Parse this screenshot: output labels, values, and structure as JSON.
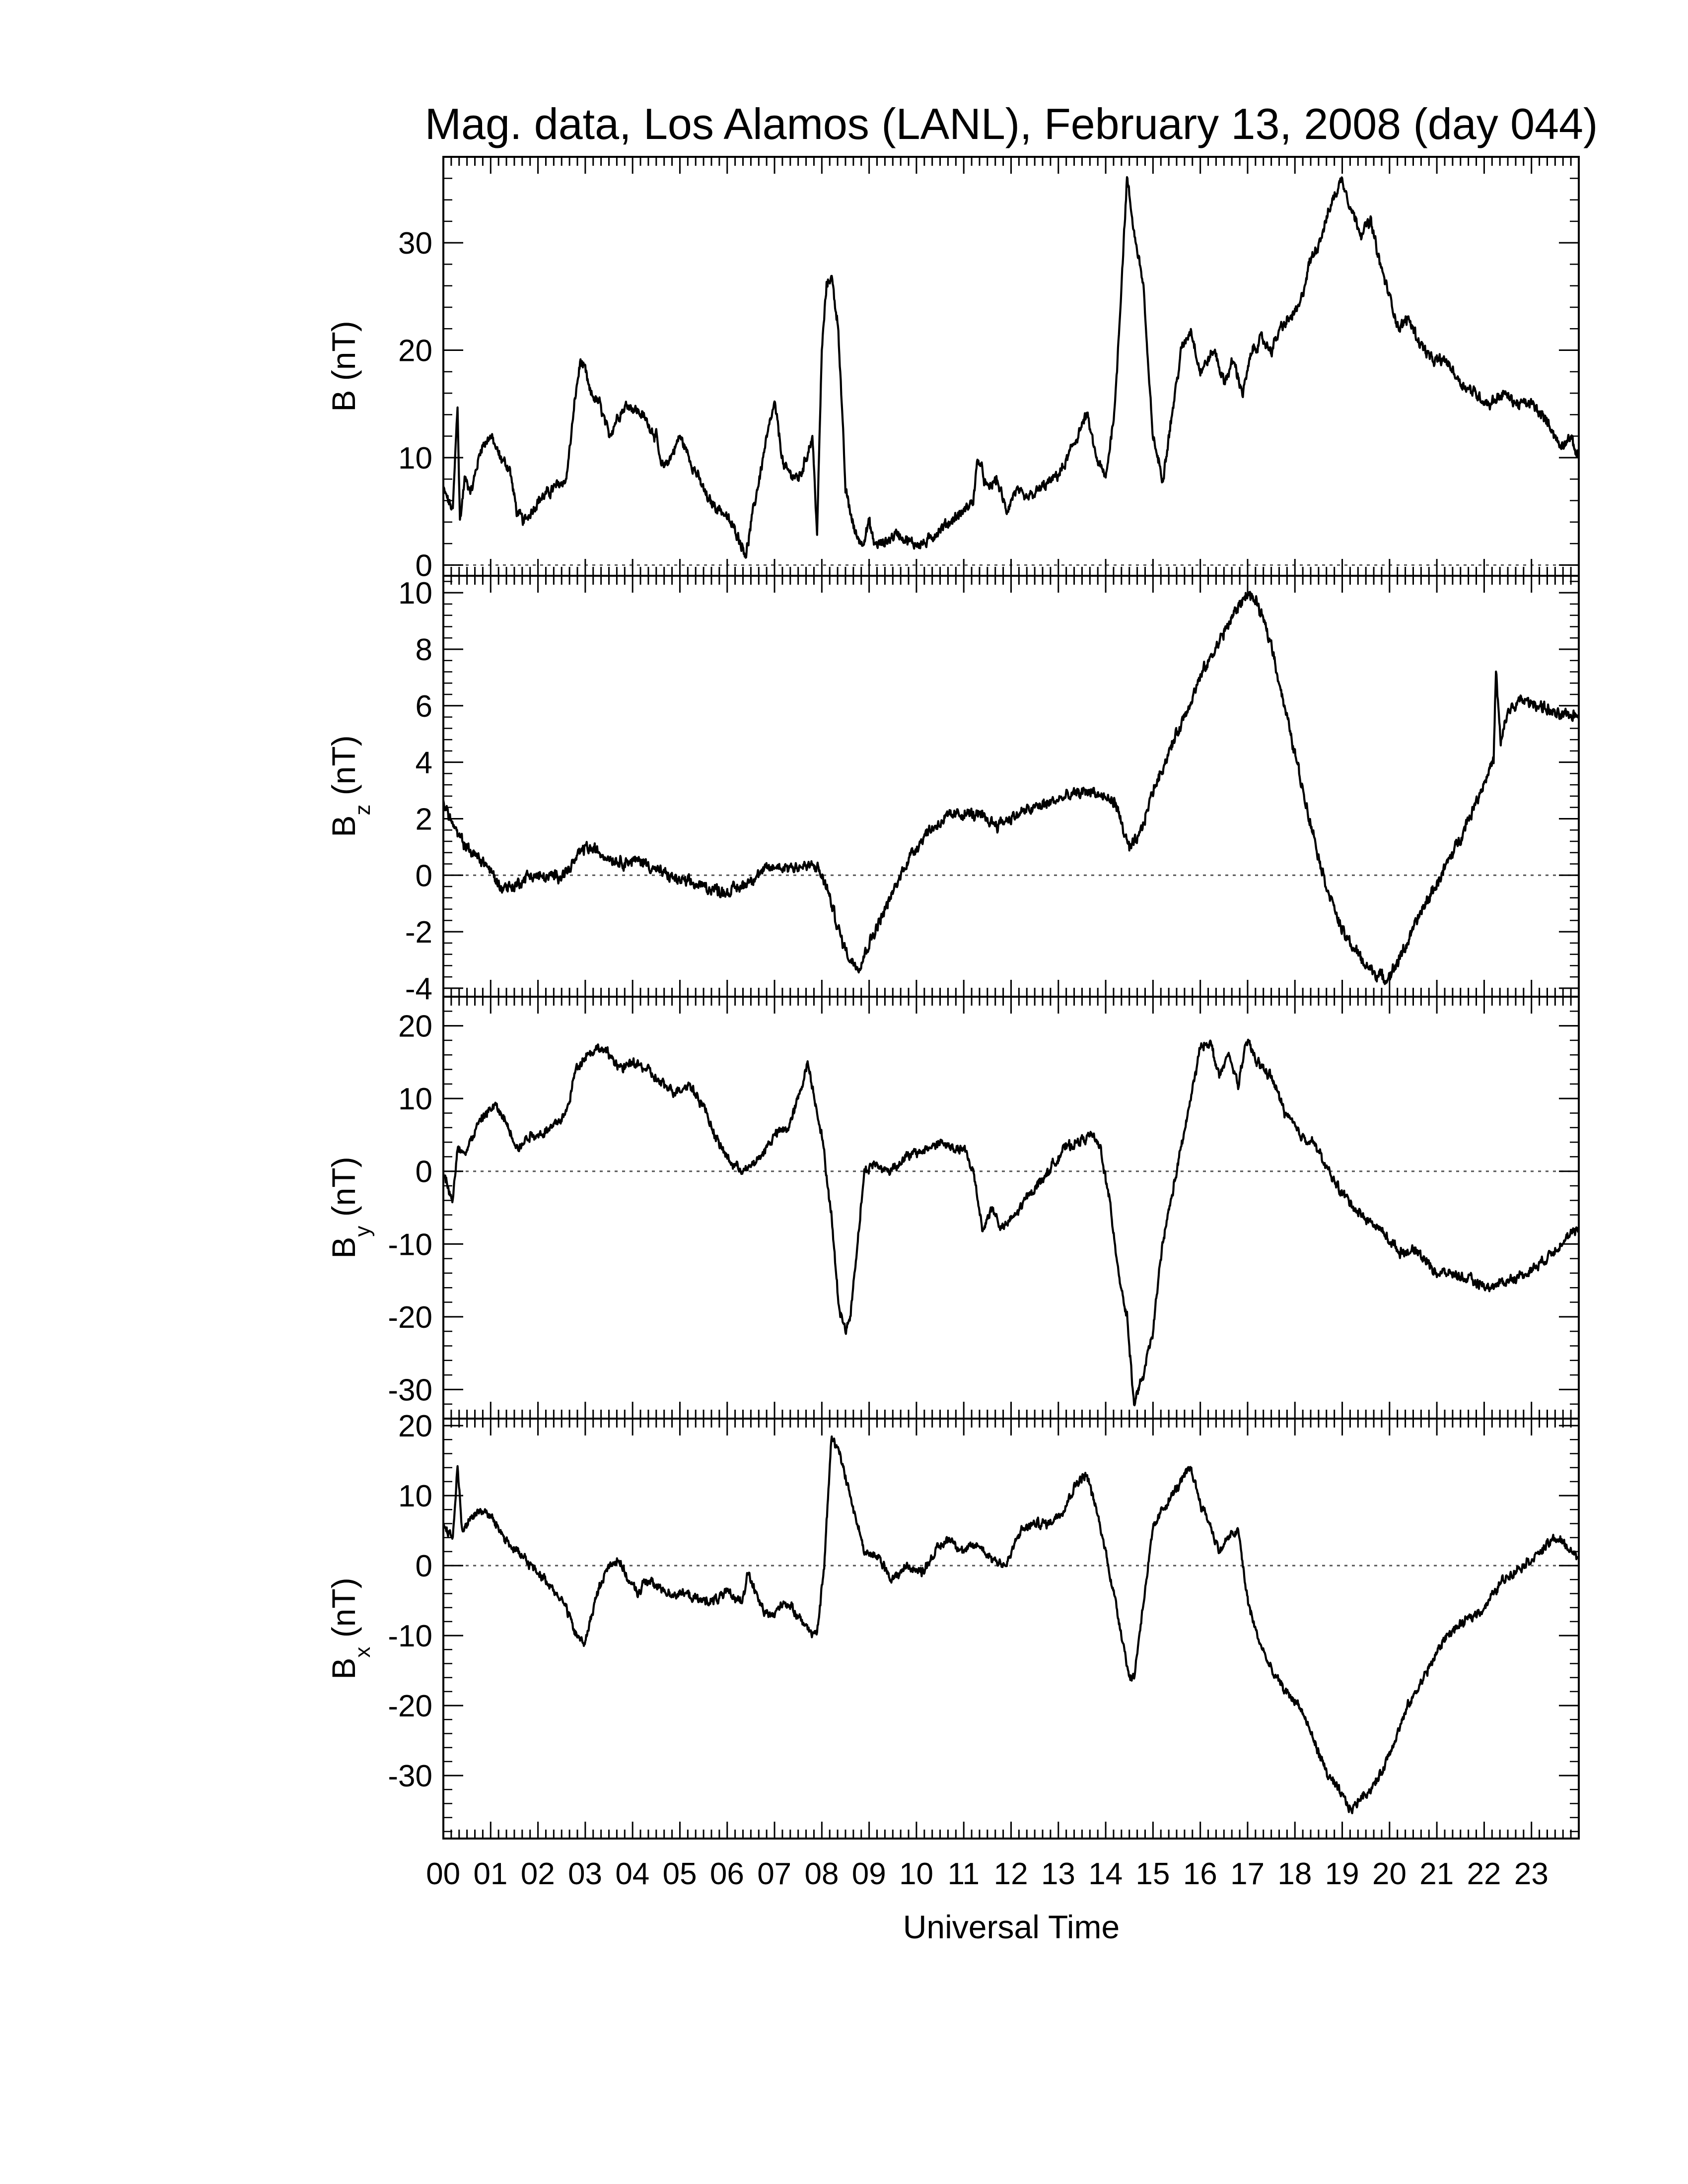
{
  "chart_data": {
    "type": "line",
    "title": "Mag. data, Los Alamos (LANL), February 13, 2008 (day 044)",
    "xlabel": "Universal Time",
    "x_ticks": [
      "00",
      "01",
      "02",
      "03",
      "04",
      "05",
      "06",
      "07",
      "08",
      "09",
      "10",
      "11",
      "12",
      "13",
      "14",
      "15",
      "16",
      "17",
      "18",
      "19",
      "20",
      "21",
      "22",
      "23"
    ],
    "xlim": [
      0,
      24
    ],
    "x_units": "hours UT",
    "colors": {
      "line": "#000000",
      "zero_line": "#555555",
      "frame": "#000000"
    },
    "panels": [
      {
        "name": "B",
        "ylabel": {
          "base": "B",
          "sub": "",
          "unit": "(nT)"
        },
        "ylim": [
          -1,
          38
        ],
        "yticks": [
          0,
          10,
          20,
          30
        ],
        "zero_line": true,
        "noise": 0.35,
        "series": {
          "x": [
            0,
            0.2,
            0.3,
            0.35,
            0.45,
            0.6,
            0.8,
            1.0,
            1.2,
            1.4,
            1.55,
            1.7,
            2.0,
            2.3,
            2.6,
            2.8,
            2.9,
            3.0,
            3.1,
            3.3,
            3.5,
            3.7,
            3.9,
            4.2,
            4.5,
            4.6,
            4.8,
            5.0,
            5.2,
            5.4,
            5.6,
            5.9,
            6.2,
            6.4,
            6.55,
            6.8,
            7.0,
            7.2,
            7.5,
            7.6,
            7.8,
            7.9,
            8.0,
            8.1,
            8.2,
            8.35,
            8.5,
            8.7,
            8.85,
            9.0,
            9.1,
            9.3,
            9.6,
            9.9,
            10.2,
            10.4,
            10.7,
            11.0,
            11.2,
            11.3,
            11.5,
            11.7,
            11.9,
            12.1,
            12.3,
            12.6,
            12.9,
            13.1,
            13.4,
            13.6,
            13.8,
            14.0,
            14.2,
            14.45,
            14.6,
            14.8,
            14.9,
            15.0,
            15.2,
            15.4,
            15.6,
            15.8,
            16.0,
            16.3,
            16.5,
            16.7,
            16.9,
            17.1,
            17.3,
            17.5,
            17.7,
            17.9,
            18.1,
            18.3,
            18.5,
            18.8,
            19.0,
            19.2,
            19.4,
            19.6,
            19.8,
            20.0,
            20.2,
            20.4,
            20.6,
            20.9,
            21.2,
            21.5,
            21.8,
            22.1,
            22.4,
            22.7,
            23.0,
            23.2,
            23.4,
            23.6,
            23.8,
            24.0
          ],
          "y": [
            7,
            5,
            15,
            4,
            8,
            7,
            11,
            12,
            10,
            9,
            5,
            4,
            6,
            7,
            8,
            16,
            19,
            18,
            16,
            15,
            12,
            14,
            15,
            14,
            12,
            9,
            10,
            12,
            10,
            8,
            6,
            5,
            3,
            1,
            5,
            11,
            15,
            9,
            8,
            9,
            12,
            3,
            20,
            26,
            27,
            22,
            7,
            3,
            2,
            4,
            2,
            2,
            3,
            2,
            2,
            3,
            4,
            5,
            6,
            10,
            7,
            8,
            5,
            7,
            6,
            7,
            8,
            9,
            12,
            14,
            10,
            8,
            15,
            36,
            31,
            26,
            18,
            12,
            8,
            14,
            20,
            22,
            18,
            20,
            17,
            19,
            16,
            20,
            21,
            20,
            22,
            23,
            24,
            28,
            30,
            34,
            36,
            33,
            31,
            32,
            28,
            25,
            22,
            23,
            21,
            19,
            19,
            17,
            16,
            15,
            16,
            15,
            15,
            14,
            13,
            11,
            12,
            10
          ]
        }
      },
      {
        "name": "Bz",
        "ylabel": {
          "base": "B",
          "sub": "z",
          "unit": "(nT)"
        },
        "ylim": [
          -4.3,
          10.6
        ],
        "yticks": [
          -4,
          -2,
          0,
          2,
          4,
          6,
          8,
          10
        ],
        "zero_line": true,
        "noise": 0.14,
        "series": {
          "x": [
            0,
            0.3,
            0.6,
            0.9,
            1.2,
            1.5,
            1.8,
            2.2,
            2.6,
            3.0,
            3.3,
            3.7,
            4.2,
            4.6,
            5.0,
            5.5,
            6.0,
            6.3,
            6.6,
            7.0,
            7.4,
            7.9,
            8.1,
            8.4,
            8.6,
            8.8,
            9.0,
            9.4,
            9.8,
            10.2,
            10.6,
            11.0,
            11.3,
            11.7,
            12.2,
            12.7,
            13.2,
            13.7,
            14.0,
            14.2,
            14.5,
            14.7,
            15.0,
            15.5,
            16.0,
            16.5,
            16.8,
            17.0,
            17.2,
            17.5,
            17.8,
            18.2,
            18.6,
            19.0,
            19.5,
            19.9,
            20.1,
            20.4,
            20.7,
            21.0,
            21.4,
            21.8,
            22.0,
            22.2,
            22.25,
            22.35,
            22.5,
            22.8,
            23.2,
            23.6,
            24.0
          ],
          "y": [
            2.6,
            1.4,
            0.8,
            0.4,
            -0.4,
            -0.4,
            0.0,
            -0.1,
            0.1,
            1.0,
            0.8,
            0.5,
            0.5,
            0.1,
            -0.2,
            -0.4,
            -0.6,
            -0.4,
            0.0,
            0.3,
            0.3,
            0.3,
            -0.4,
            -2.2,
            -3.0,
            -3.2,
            -2.4,
            -1.0,
            0.5,
            1.5,
            2.0,
            2.2,
            2.1,
            1.8,
            2.2,
            2.5,
            2.8,
            3.0,
            2.7,
            2.6,
            0.9,
            1.3,
            3.0,
            5.0,
            7.0,
            8.6,
            9.5,
            10.0,
            9.6,
            8.2,
            5.8,
            2.8,
            0.0,
            -2.0,
            -3.2,
            -3.7,
            -3.3,
            -2.3,
            -1.2,
            -0.3,
            1.0,
            2.5,
            3.3,
            4.1,
            7.2,
            4.6,
            5.8,
            6.2,
            6.0,
            5.6,
            5.7
          ]
        }
      },
      {
        "name": "By",
        "ylabel": {
          "base": "B",
          "sub": "y",
          "unit": "(nT)"
        },
        "ylim": [
          -34,
          24
        ],
        "yticks": [
          -30,
          -20,
          -10,
          0,
          10,
          20
        ],
        "zero_line": true,
        "noise": 0.45,
        "series": {
          "x": [
            0,
            0.1,
            0.2,
            0.3,
            0.5,
            0.7,
            0.9,
            1.1,
            1.3,
            1.6,
            1.8,
            2.0,
            2.3,
            2.6,
            2.8,
            3.0,
            3.3,
            3.5,
            3.8,
            4.0,
            4.3,
            4.6,
            4.9,
            5.2,
            5.5,
            5.8,
            6.1,
            6.4,
            6.7,
            7.0,
            7.3,
            7.5,
            7.7,
            7.85,
            8.0,
            8.2,
            8.35,
            8.5,
            8.6,
            8.75,
            8.9,
            9.1,
            9.4,
            9.8,
            10.2,
            10.5,
            10.8,
            11.0,
            11.2,
            11.4,
            11.6,
            11.8,
            12.1,
            12.4,
            12.8,
            13.1,
            13.4,
            13.7,
            13.9,
            14.1,
            14.3,
            14.45,
            14.6,
            14.8,
            15.0,
            15.2,
            15.5,
            15.8,
            16.0,
            16.2,
            16.4,
            16.6,
            16.8,
            17.0,
            17.2,
            17.5,
            17.8,
            18.1,
            18.4,
            18.7,
            19.0,
            19.4,
            19.8,
            20.2,
            20.6,
            21.0,
            21.3,
            21.7,
            22.1,
            22.5,
            22.9,
            23.3,
            23.6,
            24.0
          ],
          "y": [
            0,
            -2,
            -4,
            3,
            3,
            6,
            8,
            9,
            7,
            3,
            5,
            5,
            6,
            8,
            14,
            16,
            17,
            16,
            14,
            15,
            14,
            12,
            11,
            12,
            9,
            4,
            1,
            0,
            2,
            5,
            6,
            10,
            15,
            10,
            5,
            -6,
            -18,
            -22,
            -20,
            -10,
            0,
            1,
            0,
            2,
            3,
            4,
            3,
            3,
            0,
            -8,
            -5,
            -8,
            -6,
            -3,
            0,
            3,
            4,
            5,
            3,
            -5,
            -15,
            -20,
            -32,
            -28,
            -22,
            -10,
            0,
            10,
            17,
            18,
            13,
            16,
            12,
            18,
            15,
            13,
            8,
            5,
            4,
            0,
            -3,
            -6,
            -8,
            -11,
            -11,
            -14,
            -14,
            -15,
            -16,
            -15,
            -14,
            -12,
            -10,
            -8
          ]
        }
      },
      {
        "name": "Bx",
        "ylabel": {
          "base": "B",
          "sub": "x",
          "unit": "(nT)"
        },
        "ylim": [
          -39,
          21
        ],
        "yticks": [
          -30,
          -20,
          -10,
          0,
          10,
          20
        ],
        "zero_line": true,
        "noise": 0.45,
        "series": {
          "x": [
            0,
            0.2,
            0.3,
            0.4,
            0.6,
            0.8,
            1.0,
            1.2,
            1.4,
            1.7,
            2.0,
            2.3,
            2.6,
            2.8,
            3.0,
            3.1,
            3.3,
            3.5,
            3.7,
            3.9,
            4.1,
            4.3,
            4.5,
            4.8,
            5.1,
            5.4,
            5.7,
            6.0,
            6.3,
            6.45,
            6.6,
            6.8,
            7.0,
            7.2,
            7.5,
            7.7,
            7.9,
            8.05,
            8.2,
            8.35,
            8.6,
            8.9,
            9.2,
            9.5,
            9.8,
            10.1,
            10.4,
            10.7,
            11.0,
            11.3,
            11.6,
            11.9,
            12.2,
            12.5,
            12.8,
            13.1,
            13.4,
            13.6,
            13.8,
            14.0,
            14.2,
            14.4,
            14.5,
            14.6,
            14.8,
            15.0,
            15.2,
            15.5,
            15.8,
            16.0,
            16.2,
            16.4,
            16.6,
            16.8,
            17.0,
            17.2,
            17.5,
            17.8,
            18.1,
            18.4,
            18.7,
            19.0,
            19.2,
            19.4,
            19.6,
            19.8,
            20.1,
            20.4,
            20.8,
            21.2,
            21.6,
            22.0,
            22.4,
            22.8,
            23.2,
            23.5,
            23.7,
            24.0
          ],
          "y": [
            6,
            4,
            14,
            5,
            7,
            8,
            7,
            5,
            3,
            1,
            -1,
            -3,
            -6,
            -10,
            -11,
            -8,
            -3,
            0,
            1,
            -2,
            -4,
            -2,
            -3,
            -4,
            -4,
            -5,
            -5,
            -4,
            -5,
            -1,
            -4,
            -7,
            -7,
            -5,
            -7,
            -9,
            -10,
            0,
            18,
            17,
            10,
            2,
            1,
            -2,
            0,
            -1,
            2,
            4,
            2,
            3,
            1,
            0,
            5,
            6,
            6,
            8,
            12,
            13,
            8,
            2,
            -5,
            -12,
            -16,
            -16,
            -5,
            5,
            8,
            11,
            14,
            9,
            6,
            2,
            4,
            5,
            -5,
            -10,
            -15,
            -18,
            -20,
            -25,
            -30,
            -33,
            -35,
            -33,
            -32,
            -30,
            -25,
            -20,
            -15,
            -10,
            -8,
            -6,
            -2,
            0,
            2,
            4,
            3,
            1
          ]
        }
      }
    ]
  }
}
